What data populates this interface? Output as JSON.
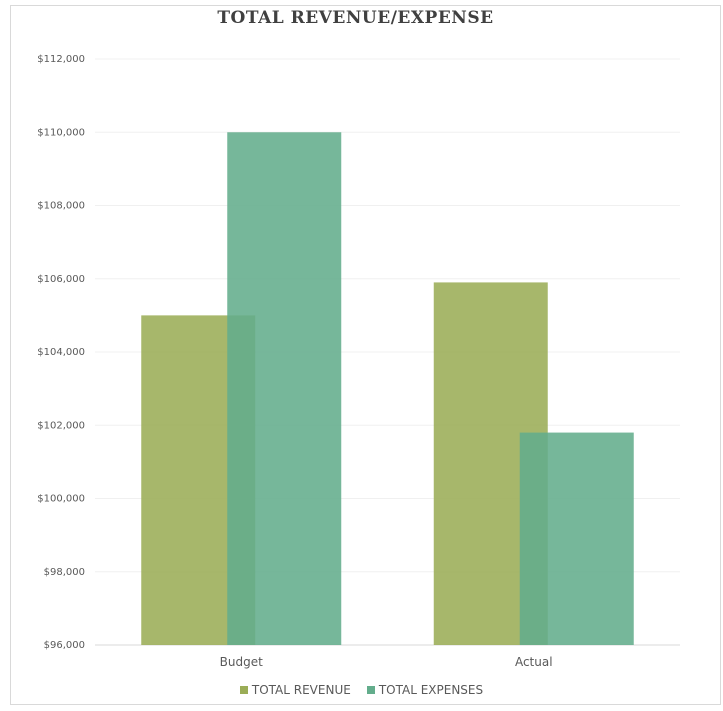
{
  "chart_data": {
    "type": "bar",
    "title": "TOTAL REVENUE/EXPENSE",
    "categories": [
      "Budget",
      "Actual"
    ],
    "series": [
      {
        "name": "TOTAL REVENUE",
        "values": [
          105000,
          105900
        ],
        "color": "#9bad57"
      },
      {
        "name": "TOTAL EXPENSES",
        "values": [
          110000,
          101800
        ],
        "color": "#63ad8c"
      }
    ],
    "ylim": [
      96000,
      112000
    ],
    "yticks": [
      "$96,000",
      "$98,000",
      "$100,000",
      "$102,000",
      "$104,000",
      "$106,000",
      "$108,000",
      "$110,000",
      "$112,000"
    ],
    "grid": true,
    "legend_position": "bottom",
    "bar_overlap": true
  }
}
